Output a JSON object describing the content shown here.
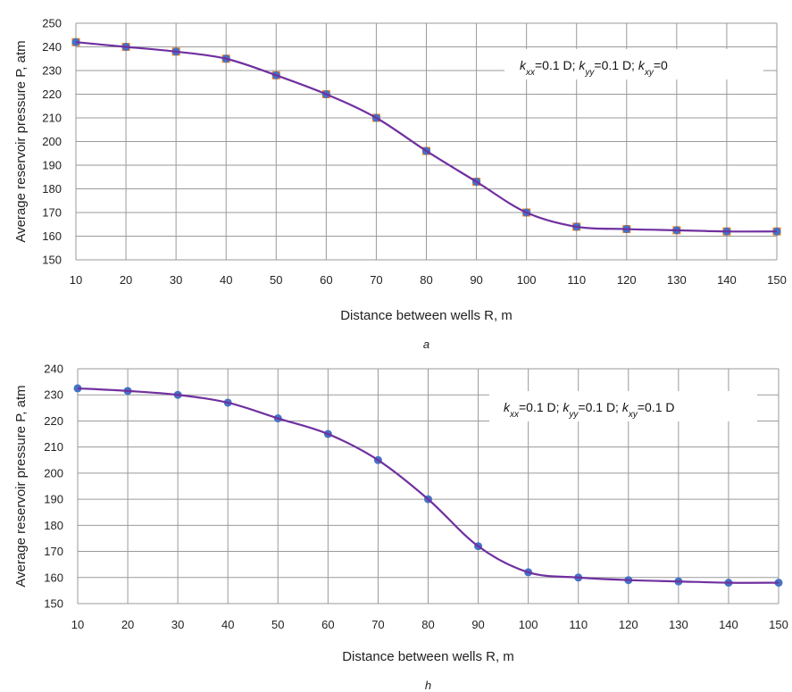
{
  "chart_data": [
    {
      "type": "line",
      "panel_label": "a",
      "xlabel": "Distance between wells R, m",
      "ylabel": "Average reservoir pressure P, atm",
      "x": [
        10,
        20,
        30,
        40,
        50,
        60,
        70,
        80,
        90,
        100,
        110,
        120,
        130,
        140,
        150
      ],
      "xlim": [
        10,
        150
      ],
      "ylim": [
        150,
        250
      ],
      "yticks": [
        150,
        160,
        170,
        180,
        190,
        200,
        210,
        220,
        230,
        240,
        250
      ],
      "grid": true,
      "annotation": {
        "k1": "k",
        "s1": "xx",
        "v1": "=0.1 D; ",
        "k2": "k",
        "s2": "yy",
        "v2": "=0.1 D; ",
        "k3": "k",
        "s3": "xy",
        "v3": "=0"
      },
      "series": [
        {
          "values": [
            242,
            240,
            238,
            235,
            228,
            220,
            210,
            196,
            183,
            170,
            164,
            163,
            162.5,
            162,
            162
          ],
          "color": "#ff7f0e",
          "marker": "square"
        },
        {
          "values": [
            242,
            240,
            238,
            235,
            228,
            220,
            210,
            196,
            183,
            170,
            164,
            163,
            162.5,
            162,
            162
          ],
          "color": "#4472c4",
          "marker": "circle"
        },
        {
          "values": [
            242,
            240,
            238,
            235,
            228,
            220,
            210,
            196,
            183,
            170,
            164,
            163,
            162.5,
            162,
            162
          ],
          "color": "#7030a0",
          "marker": "none"
        }
      ]
    },
    {
      "type": "line",
      "panel_label": "h",
      "xlabel": "Distance between wells R, m",
      "ylabel": "Average reservoir pressure P, atm",
      "x": [
        10,
        20,
        30,
        40,
        50,
        60,
        70,
        80,
        90,
        100,
        110,
        120,
        130,
        140,
        150
      ],
      "xlim": [
        10,
        150
      ],
      "ylim": [
        150,
        240
      ],
      "yticks": [
        150,
        160,
        170,
        180,
        190,
        200,
        210,
        220,
        230,
        240
      ],
      "grid": true,
      "annotation": {
        "k1": "k",
        "s1": "xx",
        "v1": "=0.1 D; ",
        "k2": "k",
        "s2": "yy",
        "v2": "=0.1 D; ",
        "k3": "k",
        "s3": "xy",
        "v3": "=0.1 D"
      },
      "series": [
        {
          "values": [
            232.5,
            231.5,
            230,
            227,
            221,
            215,
            205,
            190,
            172,
            162,
            160,
            159,
            158.5,
            158,
            158
          ],
          "color": "#4472c4",
          "marker": "circle"
        },
        {
          "values": [
            232.5,
            231.5,
            230,
            227,
            221,
            215,
            205,
            190,
            172,
            162,
            160,
            159,
            158.5,
            158,
            158
          ],
          "color": "#7030a0",
          "marker": "none"
        }
      ]
    }
  ]
}
